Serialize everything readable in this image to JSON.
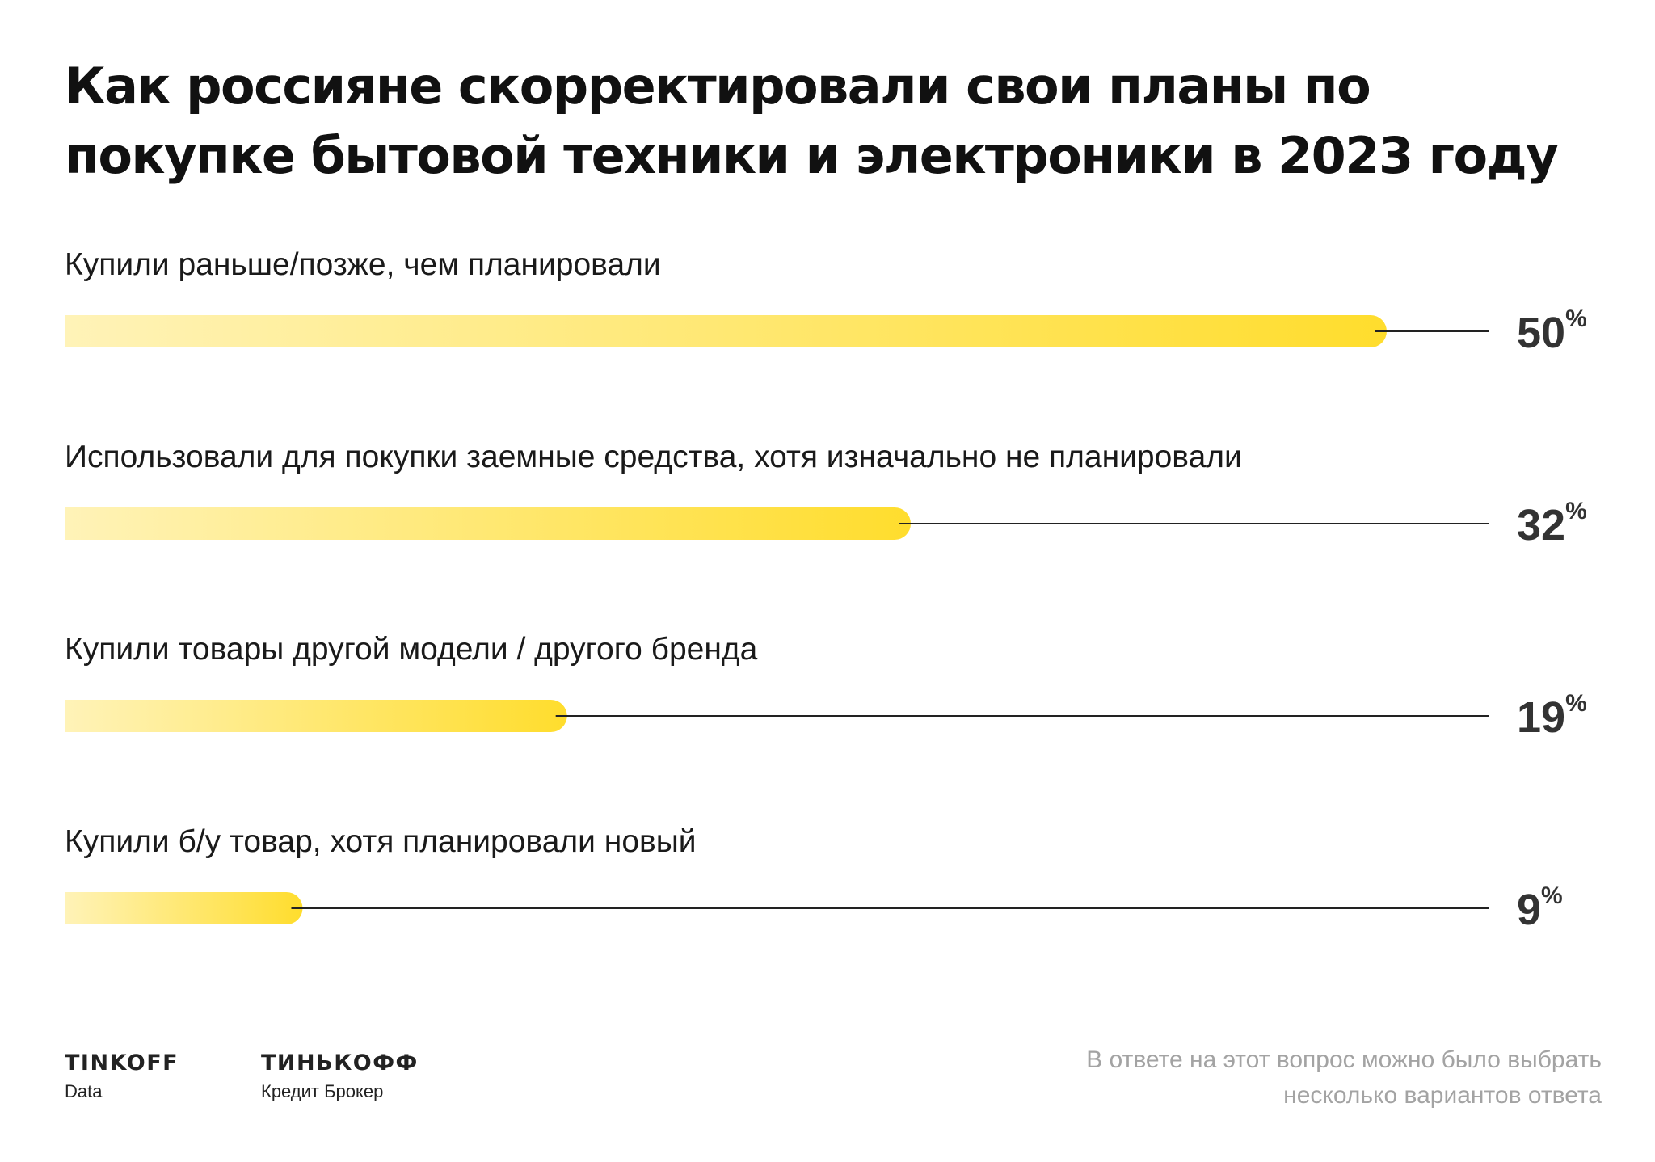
{
  "title": "Как россияне скорректировали свои планы по покупке бытовой техники и электроники в 2023 году",
  "colors": {
    "bar_start": "#FFF3B8",
    "bar_end": "#FFDD2D",
    "text": "#111111",
    "value": "#333333",
    "leader_line": "#222222",
    "footnote": "#A3A3A3"
  },
  "chart_data": {
    "type": "bar",
    "orientation": "horizontal",
    "unit": "%",
    "categories": [
      "Купили раньше/позже, чем планировали",
      "Использовали для покупки заемные средства, хотя изначально не планировали",
      "Купили товары другой модели / другого бренда",
      "Купили б/у товар, хотя планировали новый"
    ],
    "values": [
      50,
      32,
      19,
      9
    ],
    "title": "Как россияне скорректировали свои планы по покупке бытовой техники и электроники в 2023 году",
    "xlim": [
      0,
      50
    ],
    "grid": false,
    "legend": "none"
  },
  "brands": [
    {
      "name": "TINKOFF",
      "sub": "Data"
    },
    {
      "name": "ТИНЬКОФФ",
      "sub": "Кредит Брокер"
    }
  ],
  "footnote": "В ответе на этот вопрос можно было выбрать несколько вариантов ответа"
}
